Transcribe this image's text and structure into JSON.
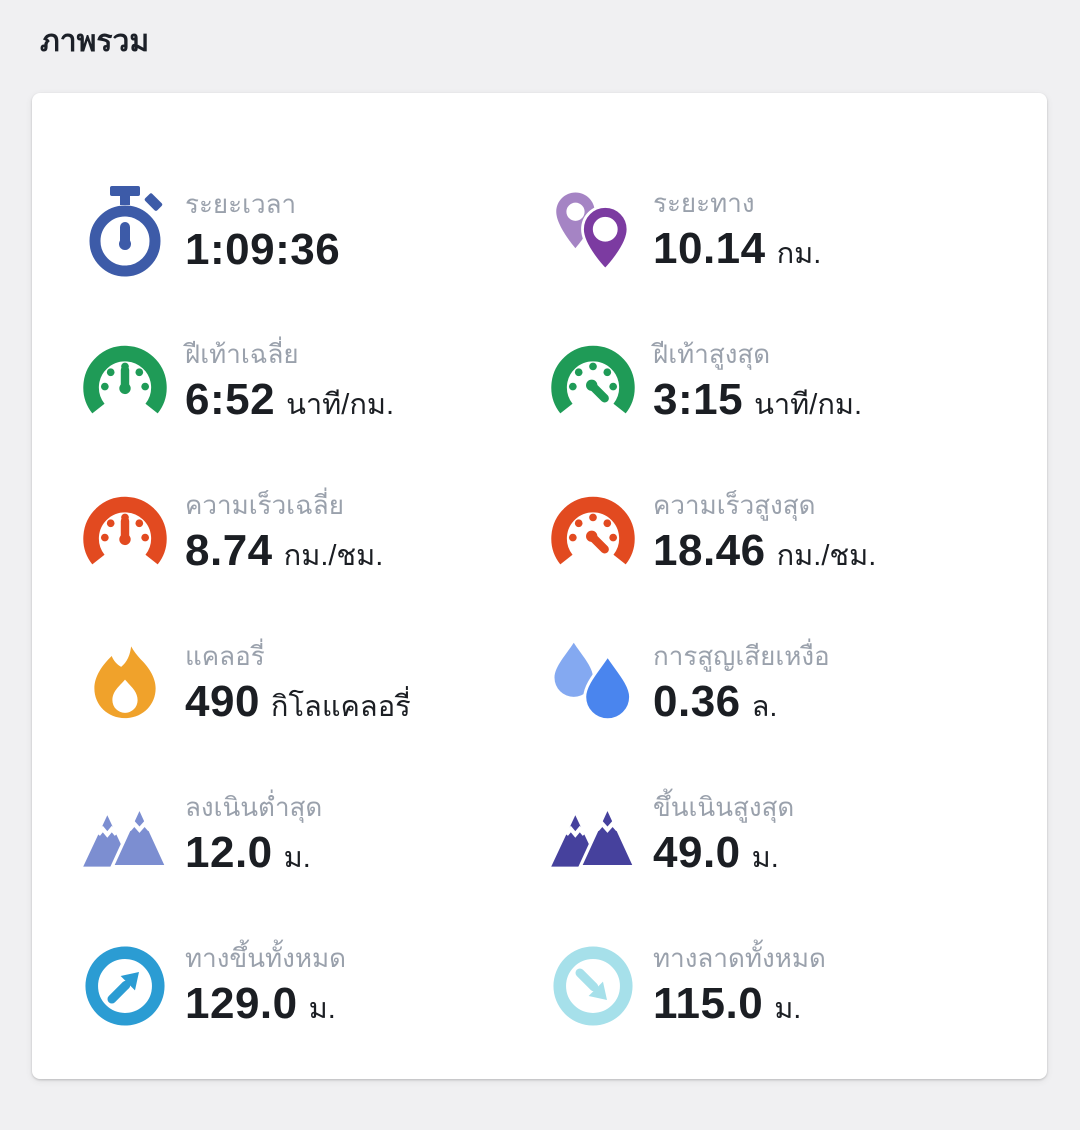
{
  "page": {
    "title": "ภาพรวม",
    "background_color": "#f0f0f2",
    "card_background": "#ffffff",
    "title_color": "#1c2028",
    "label_color": "#9aa1ac",
    "value_color": "#1b1e23"
  },
  "stats": [
    {
      "name": "duration",
      "icon": "stopwatch-icon",
      "icon_color": "#3d5ba8",
      "icon_color2": null,
      "label": "ระยะเวลา",
      "value": "1:09:36",
      "unit": ""
    },
    {
      "name": "distance",
      "icon": "map-pins-icon",
      "icon_color": "#7c3ba1",
      "icon_color2": "#a584c4",
      "label": "ระยะทาง",
      "value": "10.14",
      "unit": "กม."
    },
    {
      "name": "avg-pace",
      "icon": "gauge-avg-icon",
      "icon_color": "#1f9b57",
      "icon_color2": null,
      "label": "ฝีเท้าเฉลี่ย",
      "value": "6:52",
      "unit": "นาที/กม."
    },
    {
      "name": "max-pace",
      "icon": "gauge-max-icon",
      "icon_color": "#1f9b57",
      "icon_color2": null,
      "label": "ฝีเท้าสูงสุด",
      "value": "3:15",
      "unit": "นาที/กม."
    },
    {
      "name": "avg-speed",
      "icon": "gauge-avg-icon",
      "icon_color": "#e24a20",
      "icon_color2": null,
      "label": "ความเร็วเฉลี่ย",
      "value": "8.74",
      "unit": "กม./ชม."
    },
    {
      "name": "max-speed",
      "icon": "gauge-max-icon",
      "icon_color": "#e24a20",
      "icon_color2": null,
      "label": "ความเร็วสูงสุด",
      "value": "18.46",
      "unit": "กม./ชม."
    },
    {
      "name": "calories",
      "icon": "flame-icon",
      "icon_color": "#f0a22b",
      "icon_color2": null,
      "label": "แคลอรี่",
      "value": "490",
      "unit": "กิโลแคลอรี่"
    },
    {
      "name": "sweat-loss",
      "icon": "water-drops-icon",
      "icon_color": "#4a85ee",
      "icon_color2": "#84a9f1",
      "label": "การสูญเสียเหงื่อ",
      "value": "0.36",
      "unit": "ล."
    },
    {
      "name": "min-descent",
      "icon": "mountains-icon",
      "icon_color": "#7c8ed1",
      "icon_color2": null,
      "label": "ลงเนินต่ำสุด",
      "value": "12.0",
      "unit": "ม."
    },
    {
      "name": "max-ascent",
      "icon": "mountains-icon",
      "icon_color": "#46419d",
      "icon_color2": null,
      "label": "ขึ้นเนินสูงสุด",
      "value": "49.0",
      "unit": "ม."
    },
    {
      "name": "total-ascent",
      "icon": "arrow-up-right-circle-icon",
      "icon_color": "#2b9cd3",
      "icon_color2": null,
      "label": "ทางขึ้นทั้งหมด",
      "value": "129.0",
      "unit": "ม."
    },
    {
      "name": "total-descent",
      "icon": "arrow-down-right-circle-icon",
      "icon_color": "#a6e0ea",
      "icon_color2": null,
      "label": "ทางลาดทั้งหมด",
      "value": "115.0",
      "unit": "ม."
    }
  ]
}
